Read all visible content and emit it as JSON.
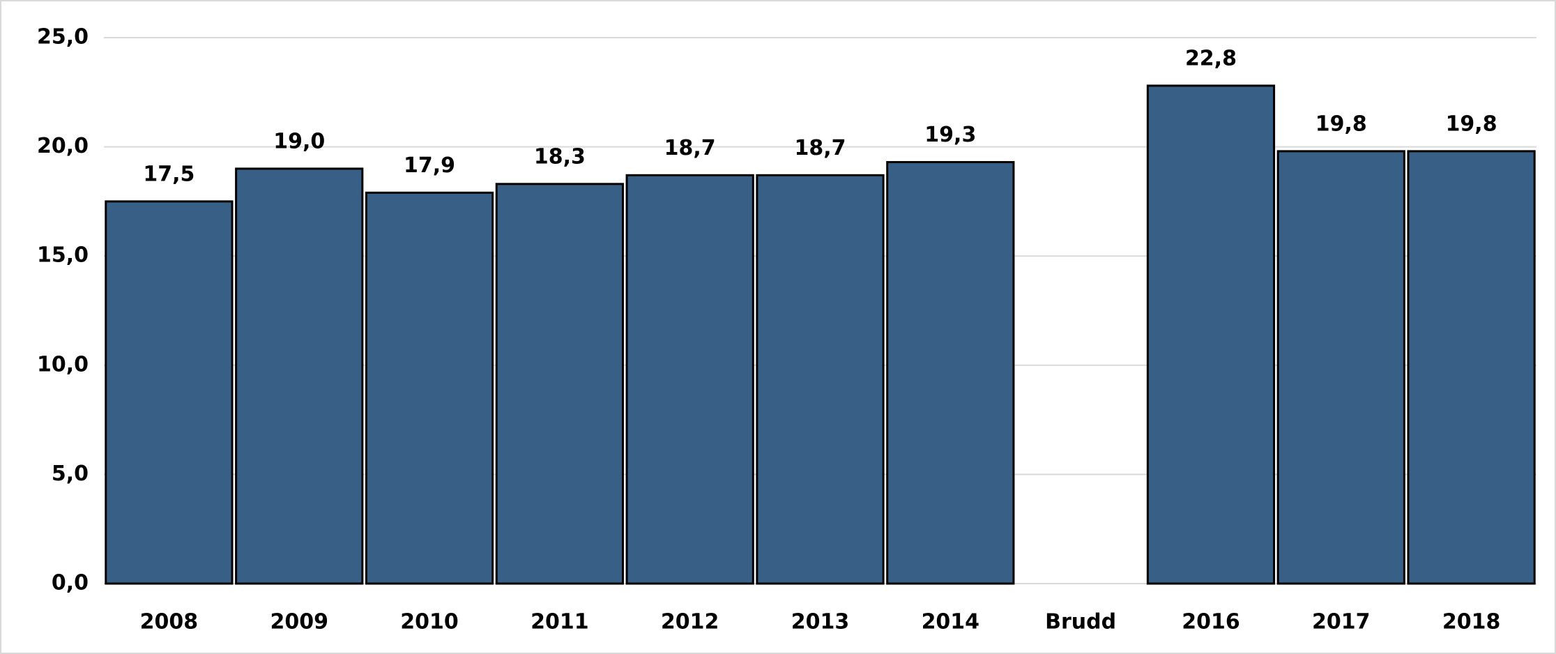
{
  "chart_data": {
    "type": "bar",
    "categories": [
      "2008",
      "2009",
      "2010",
      "2011",
      "2012",
      "2013",
      "2014",
      "Brudd",
      "2016",
      "2017",
      "2018"
    ],
    "values": [
      17.5,
      19.0,
      17.9,
      18.3,
      18.7,
      18.7,
      19.3,
      null,
      22.8,
      19.8,
      19.8
    ],
    "value_labels": [
      "17,5",
      "19,0",
      "17,9",
      "18,3",
      "18,7",
      "18,7",
      "19,3",
      null,
      "22,8",
      "19,8",
      "19,8"
    ],
    "color": "#386087",
    "ylim": [
      0,
      25
    ],
    "yticks": [
      {
        "value": 0,
        "label": "0,0"
      },
      {
        "value": 5,
        "label": "5,0"
      },
      {
        "value": 10,
        "label": "10,0"
      },
      {
        "value": 15,
        "label": "15,0"
      },
      {
        "value": 20,
        "label": "20,0"
      },
      {
        "value": 25,
        "label": "25,0"
      }
    ],
    "grid": true
  }
}
